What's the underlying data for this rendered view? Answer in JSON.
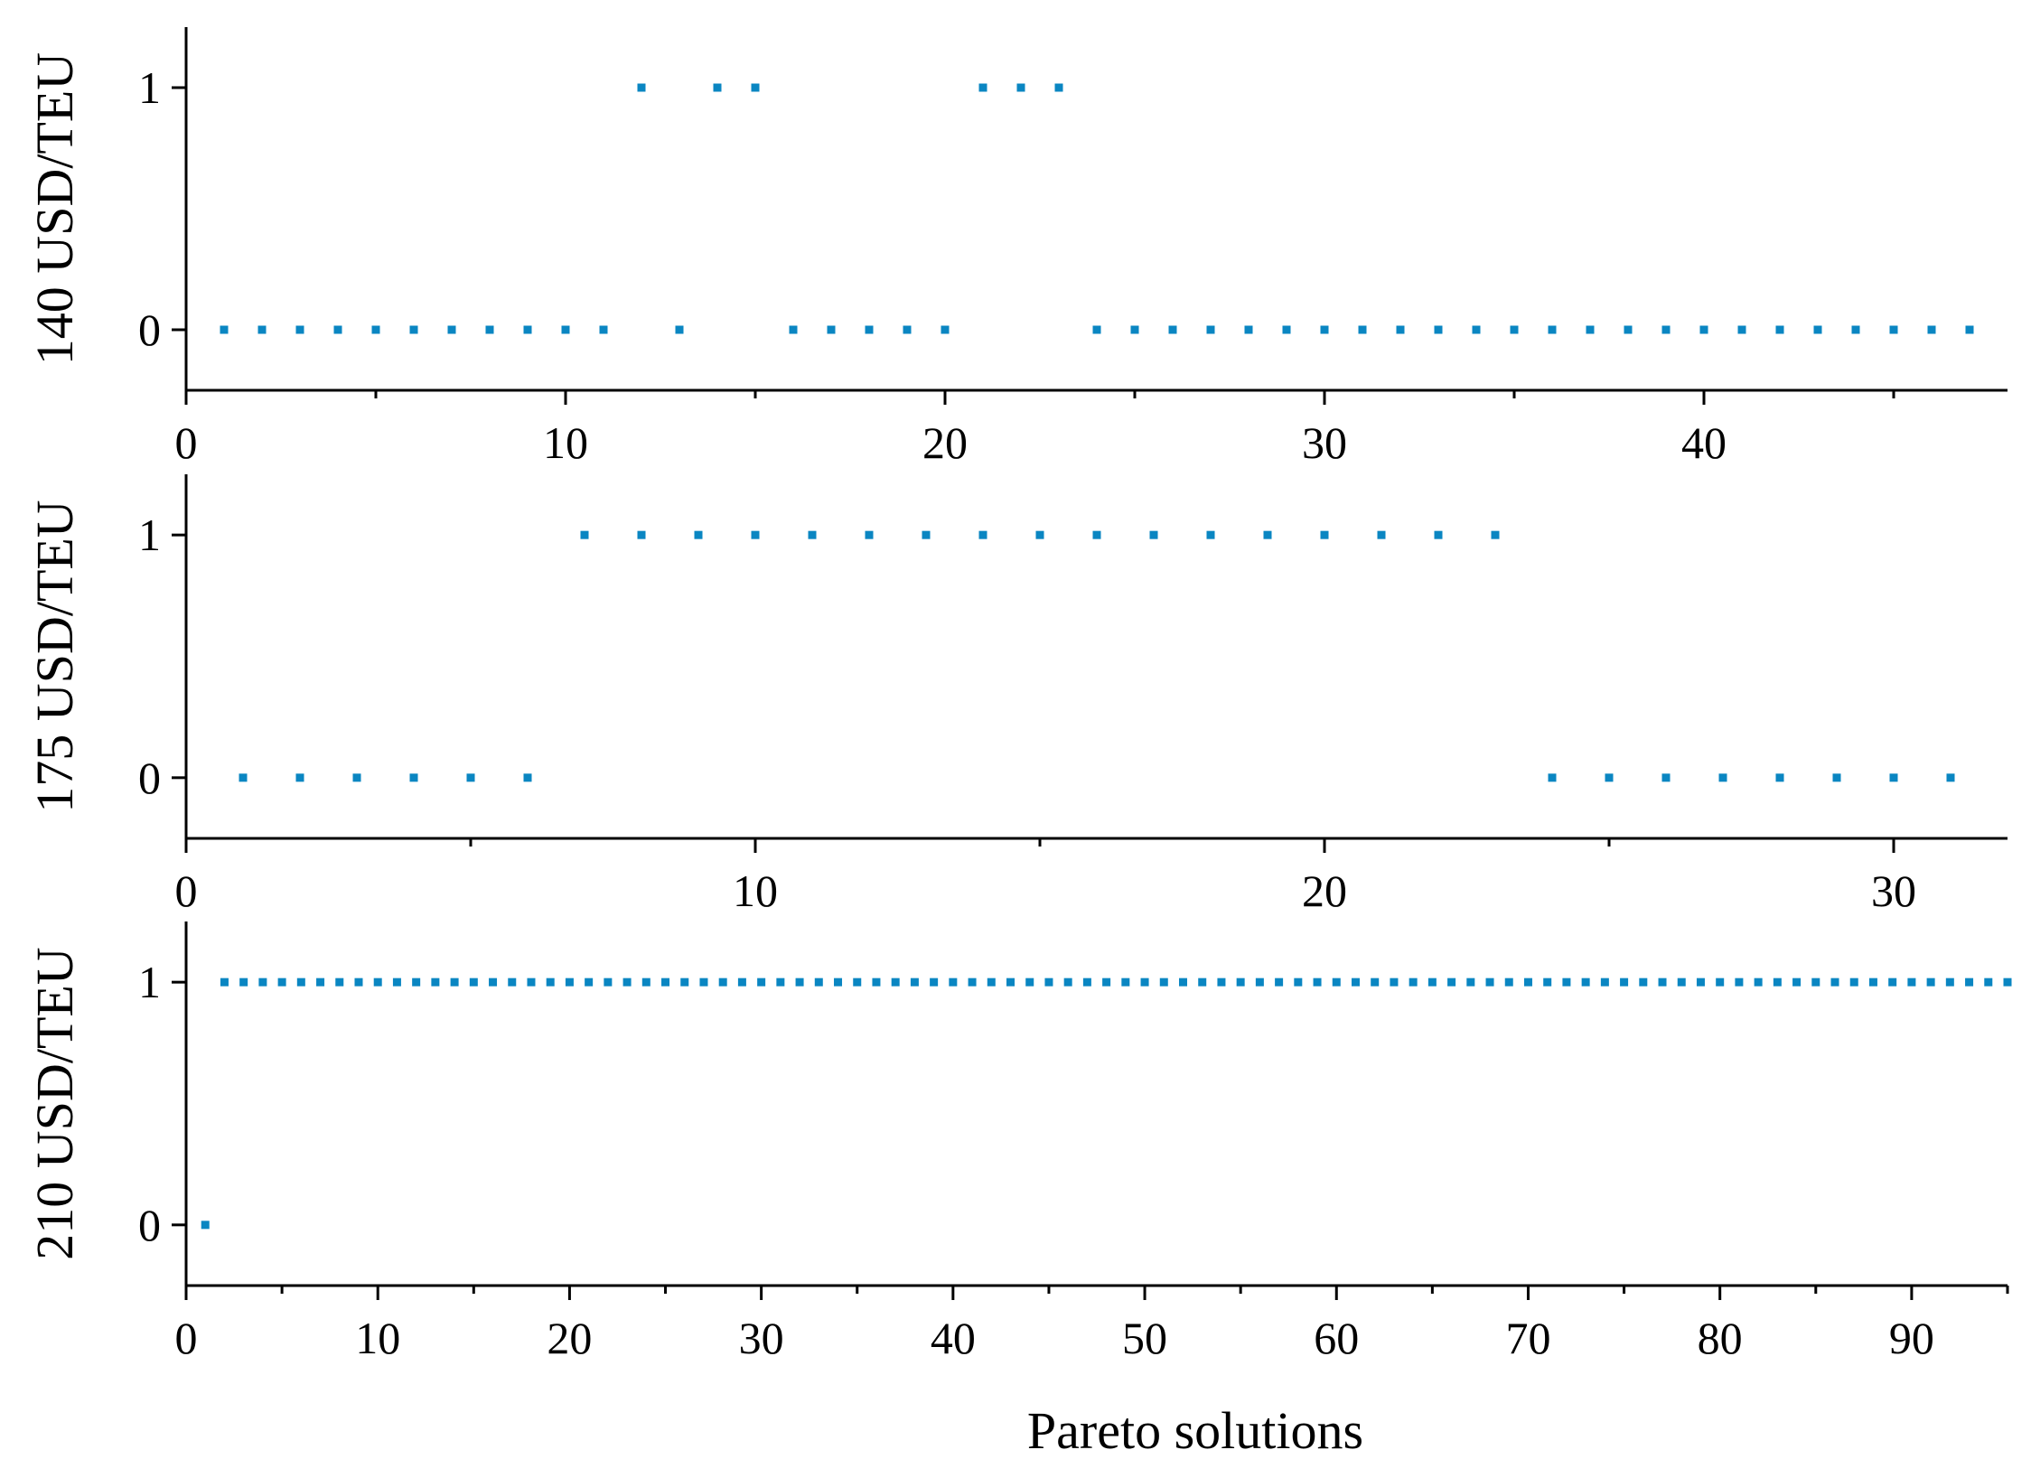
{
  "colors": {
    "marker": "#0a86c2",
    "axis": "#000000",
    "background": "#ffffff"
  },
  "xlabel": "Pareto solutions",
  "chart_data": [
    {
      "type": "scatter",
      "ylabel": "140 USD/TEU",
      "xlim": [
        0,
        48
      ],
      "ylim": [
        -0.25,
        1.25
      ],
      "xticks": [
        0,
        10,
        20,
        30,
        40
      ],
      "minor_xticks": [
        5,
        15,
        25,
        35,
        45
      ],
      "yticks": [
        0,
        1
      ],
      "x": [
        1,
        2,
        3,
        4,
        5,
        6,
        7,
        8,
        9,
        10,
        11,
        12,
        13,
        14,
        15,
        16,
        17,
        18,
        19,
        20,
        21,
        22,
        23,
        24,
        25,
        26,
        27,
        28,
        29,
        30,
        31,
        32,
        33,
        34,
        35,
        36,
        37,
        38,
        39,
        40,
        41,
        42,
        43,
        44,
        45,
        46,
        47
      ],
      "y": [
        0,
        0,
        0,
        0,
        0,
        0,
        0,
        0,
        0,
        0,
        0,
        1,
        0,
        1,
        1,
        0,
        0,
        0,
        0,
        0,
        1,
        1,
        1,
        0,
        0,
        0,
        0,
        0,
        0,
        0,
        0,
        0,
        0,
        0,
        0,
        0,
        0,
        0,
        0,
        0,
        0,
        0,
        0,
        0,
        0,
        0,
        0
      ]
    },
    {
      "type": "scatter",
      "ylabel": "175 USD/TEU",
      "xlim": [
        0,
        32
      ],
      "ylim": [
        -0.25,
        1.25
      ],
      "xticks": [
        0,
        10,
        20,
        30
      ],
      "minor_xticks": [
        5,
        15,
        25
      ],
      "yticks": [
        0,
        1
      ],
      "x": [
        1,
        2,
        3,
        4,
        5,
        6,
        7,
        8,
        9,
        10,
        11,
        12,
        13,
        14,
        15,
        16,
        17,
        18,
        19,
        20,
        21,
        22,
        23,
        24,
        25,
        26,
        27,
        28,
        29,
        30,
        31
      ],
      "y": [
        0,
        0,
        0,
        0,
        0,
        0,
        1,
        1,
        1,
        1,
        1,
        1,
        1,
        1,
        1,
        1,
        1,
        1,
        1,
        1,
        1,
        1,
        1,
        0,
        0,
        0,
        0,
        0,
        0,
        0,
        0
      ]
    },
    {
      "type": "scatter",
      "ylabel": "210 USD/TEU",
      "xlim": [
        0,
        95
      ],
      "ylim": [
        -0.25,
        1.25
      ],
      "xticks": [
        0,
        10,
        20,
        30,
        40,
        50,
        60,
        70,
        80,
        90
      ],
      "minor_xticks": [
        5,
        15,
        25,
        35,
        45,
        55,
        65,
        75,
        85,
        95
      ],
      "yticks": [
        0,
        1
      ],
      "x": [
        1,
        2,
        3,
        4,
        5,
        6,
        7,
        8,
        9,
        10,
        11,
        12,
        13,
        14,
        15,
        16,
        17,
        18,
        19,
        20,
        21,
        22,
        23,
        24,
        25,
        26,
        27,
        28,
        29,
        30,
        31,
        32,
        33,
        34,
        35,
        36,
        37,
        38,
        39,
        40,
        41,
        42,
        43,
        44,
        45,
        46,
        47,
        48,
        49,
        50,
        51,
        52,
        53,
        54,
        55,
        56,
        57,
        58,
        59,
        60,
        61,
        62,
        63,
        64,
        65,
        66,
        67,
        68,
        69,
        70,
        71,
        72,
        73,
        74,
        75,
        76,
        77,
        78,
        79,
        80,
        81,
        82,
        83,
        84,
        85,
        86,
        87,
        88,
        89,
        90,
        91,
        92,
        93,
        94,
        95
      ],
      "y": [
        0,
        1,
        1,
        1,
        1,
        1,
        1,
        1,
        1,
        1,
        1,
        1,
        1,
        1,
        1,
        1,
        1,
        1,
        1,
        1,
        1,
        1,
        1,
        1,
        1,
        1,
        1,
        1,
        1,
        1,
        1,
        1,
        1,
        1,
        1,
        1,
        1,
        1,
        1,
        1,
        1,
        1,
        1,
        1,
        1,
        1,
        1,
        1,
        1,
        1,
        1,
        1,
        1,
        1,
        1,
        1,
        1,
        1,
        1,
        1,
        1,
        1,
        1,
        1,
        1,
        1,
        1,
        1,
        1,
        1,
        1,
        1,
        1,
        1,
        1,
        1,
        1,
        1,
        1,
        1,
        1,
        1,
        1,
        1,
        1,
        1,
        1,
        1,
        1,
        1,
        1,
        1,
        1,
        1,
        1
      ]
    }
  ]
}
